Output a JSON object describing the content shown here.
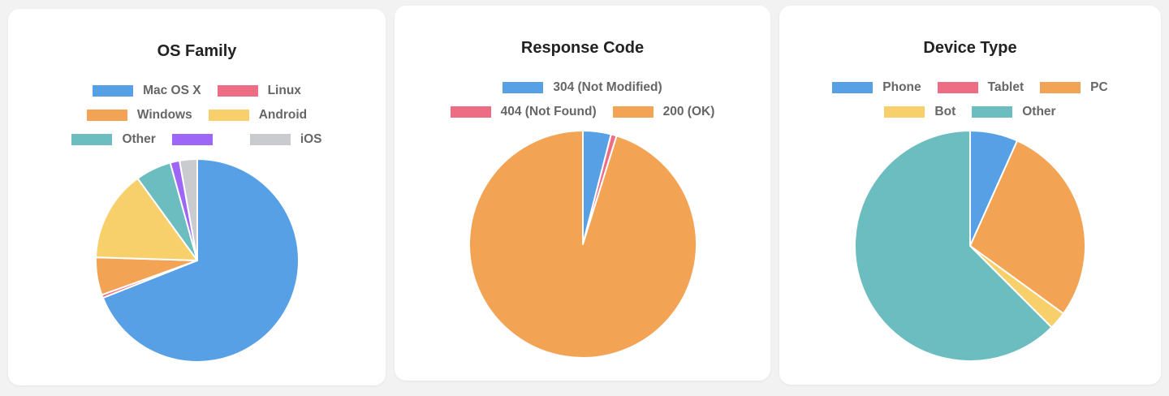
{
  "colors": {
    "blue": "#57a0e5",
    "red": "#ed6d85",
    "orange": "#f2a454",
    "yellow": "#f7cf6b",
    "teal": "#6cbdbf",
    "purple": "#9d66f6",
    "grey": "#c9cbcf"
  },
  "chart_data": [
    {
      "type": "pie",
      "title": "OS Family",
      "categories": [
        "Mac OS X",
        "Linux",
        "Windows",
        "Android",
        "Other",
        "",
        "iOS"
      ],
      "values": [
        69.0,
        0.5,
        6.0,
        14.5,
        5.7,
        1.5,
        2.8
      ],
      "colors": [
        "#57a0e5",
        "#ed6d85",
        "#f2a454",
        "#f7cf6b",
        "#6cbdbf",
        "#9d66f6",
        "#c9cbcf"
      ],
      "legend": "top"
    },
    {
      "type": "pie",
      "title": "Response Code",
      "categories": [
        "304 (Not Modified)",
        "404 (Not Found)",
        "200 (OK)"
      ],
      "values": [
        4.0,
        0.8,
        95.2
      ],
      "colors": [
        "#57a0e5",
        "#ed6d85",
        "#f2a454"
      ],
      "legend": "top"
    },
    {
      "type": "pie",
      "title": "Device Type",
      "categories": [
        "Phone",
        "Tablet",
        "PC",
        "Bot",
        "Other"
      ],
      "values": [
        6.7,
        0.0,
        28.3,
        2.5,
        62.5
      ],
      "colors": [
        "#57a0e5",
        "#ed6d85",
        "#f2a454",
        "#f7cf6b",
        "#6cbdbf"
      ],
      "legend": "top"
    }
  ]
}
